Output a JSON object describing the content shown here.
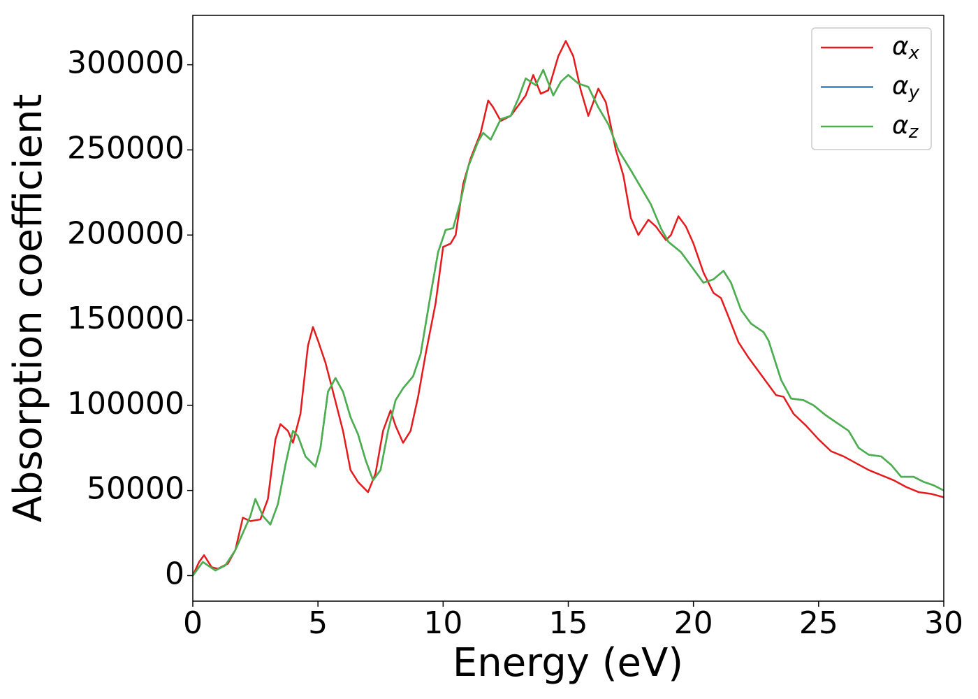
{
  "chart_data": {
    "type": "line",
    "xlabel": "Energy (eV)",
    "ylabel": "Absorption coefficient",
    "xlim": [
      0,
      30
    ],
    "ylim": [
      -15000,
      329000
    ],
    "xticks": [
      0,
      5,
      10,
      15,
      20,
      25,
      30
    ],
    "yticks": [
      0,
      50000,
      100000,
      150000,
      200000,
      250000,
      300000
    ],
    "legend": "upper right",
    "series": [
      {
        "name": "αx",
        "color": "#e41a1c",
        "x": [
          0,
          0.25,
          0.45,
          0.75,
          1.0,
          1.4,
          1.7,
          2.0,
          2.3,
          2.7,
          3.0,
          3.3,
          3.5,
          3.8,
          4.0,
          4.3,
          4.6,
          4.8,
          5.0,
          5.3,
          5.6,
          6.0,
          6.3,
          6.6,
          7.0,
          7.3,
          7.6,
          7.9,
          8.1,
          8.4,
          8.7,
          9.0,
          9.3,
          9.7,
          10.0,
          10.3,
          10.5,
          10.8,
          11.1,
          11.5,
          11.8,
          12.0,
          12.3,
          12.7,
          13.0,
          13.3,
          13.6,
          13.9,
          14.2,
          14.6,
          14.9,
          15.2,
          15.5,
          15.8,
          16.2,
          16.5,
          16.9,
          17.2,
          17.5,
          17.8,
          18.2,
          18.5,
          18.9,
          19.1,
          19.4,
          19.7,
          20.0,
          20.4,
          20.8,
          21.1,
          21.4,
          21.8,
          22.2,
          22.6,
          23.0,
          23.3,
          23.6,
          24.0,
          24.5,
          25.0,
          25.5,
          26.0,
          26.5,
          27.0,
          27.5,
          28.0,
          28.5,
          29.0,
          29.5,
          30.0
        ],
        "values": [
          0,
          8000,
          12000,
          5000,
          4000,
          7000,
          15000,
          34000,
          32000,
          33000,
          45000,
          80000,
          89000,
          85000,
          78000,
          95000,
          135000,
          146000,
          138000,
          125000,
          108000,
          85000,
          62000,
          55000,
          49000,
          60000,
          85000,
          97000,
          88000,
          78000,
          85000,
          105000,
          130000,
          160000,
          193000,
          195000,
          200000,
          230000,
          245000,
          260000,
          279000,
          275000,
          267000,
          270000,
          276000,
          282000,
          294000,
          283000,
          285000,
          305000,
          314000,
          305000,
          285000,
          270000,
          286000,
          278000,
          250000,
          235000,
          210000,
          200000,
          209000,
          205000,
          197000,
          200000,
          211000,
          205000,
          195000,
          178000,
          166000,
          163000,
          152000,
          137000,
          128000,
          120000,
          112000,
          106000,
          105000,
          95000,
          88000,
          80000,
          73000,
          70000,
          66000,
          62000,
          59000,
          56000,
          52000,
          49000,
          48000,
          46000
        ]
      },
      {
        "name": "αy",
        "color": "#377eb8",
        "x": [
          0,
          0.4,
          0.9,
          1.3,
          1.7,
          2.0,
          2.3,
          2.5,
          2.8,
          3.1,
          3.4,
          3.7,
          4.0,
          4.2,
          4.5,
          4.9,
          5.1,
          5.4,
          5.7,
          6.0,
          6.3,
          6.6,
          6.9,
          7.2,
          7.5,
          7.8,
          8.1,
          8.4,
          8.8,
          9.1,
          9.5,
          9.8,
          10.1,
          10.4,
          10.7,
          11.0,
          11.4,
          11.6,
          11.9,
          12.3,
          12.7,
          13.0,
          13.3,
          13.7,
          14.0,
          14.4,
          14.7,
          15.0,
          15.4,
          15.8,
          16.2,
          16.6,
          17.0,
          17.5,
          17.9,
          18.3,
          18.7,
          19.0,
          19.5,
          20.0,
          20.4,
          20.8,
          21.2,
          21.5,
          21.9,
          22.3,
          22.8,
          23.0,
          23.5,
          23.9,
          24.4,
          24.8,
          25.3,
          25.7,
          26.2,
          26.6,
          27.0,
          27.5,
          27.9,
          28.3,
          28.8,
          29.2,
          29.6,
          30.0
        ],
        "values": [
          0,
          8000,
          3000,
          6000,
          15000,
          25000,
          35000,
          45000,
          35000,
          30000,
          42000,
          65000,
          85000,
          82000,
          70000,
          64000,
          75000,
          108000,
          116000,
          108000,
          93000,
          83000,
          68000,
          56000,
          62000,
          85000,
          103000,
          110000,
          117000,
          130000,
          165000,
          190000,
          203000,
          204000,
          220000,
          240000,
          255000,
          260000,
          256000,
          268000,
          270000,
          280000,
          292000,
          288000,
          297000,
          282000,
          290000,
          294000,
          289000,
          287000,
          275000,
          265000,
          250000,
          238000,
          228000,
          218000,
          204000,
          196000,
          190000,
          180000,
          172000,
          174000,
          179000,
          172000,
          156000,
          148000,
          143000,
          138000,
          115000,
          104000,
          103000,
          100000,
          94000,
          90000,
          85000,
          75000,
          71000,
          70000,
          65000,
          58000,
          58000,
          55000,
          53000,
          50000
        ]
      },
      {
        "name": "αz",
        "color": "#4daf4a",
        "x": [
          0,
          0.4,
          0.9,
          1.3,
          1.7,
          2.0,
          2.3,
          2.5,
          2.8,
          3.1,
          3.4,
          3.7,
          4.0,
          4.2,
          4.5,
          4.9,
          5.1,
          5.4,
          5.7,
          6.0,
          6.3,
          6.6,
          6.9,
          7.2,
          7.5,
          7.8,
          8.1,
          8.4,
          8.8,
          9.1,
          9.5,
          9.8,
          10.1,
          10.4,
          10.7,
          11.0,
          11.4,
          11.6,
          11.9,
          12.3,
          12.7,
          13.0,
          13.3,
          13.7,
          14.0,
          14.4,
          14.7,
          15.0,
          15.4,
          15.8,
          16.2,
          16.6,
          17.0,
          17.5,
          17.9,
          18.3,
          18.7,
          19.0,
          19.5,
          20.0,
          20.4,
          20.8,
          21.2,
          21.5,
          21.9,
          22.3,
          22.8,
          23.0,
          23.5,
          23.9,
          24.4,
          24.8,
          25.3,
          25.7,
          26.2,
          26.6,
          27.0,
          27.5,
          27.9,
          28.3,
          28.8,
          29.2,
          29.6,
          30.0
        ],
        "values": [
          0,
          8000,
          3000,
          6000,
          15000,
          25000,
          35000,
          45000,
          35000,
          30000,
          42000,
          65000,
          85000,
          82000,
          70000,
          64000,
          75000,
          108000,
          116000,
          108000,
          93000,
          83000,
          68000,
          56000,
          62000,
          85000,
          103000,
          110000,
          117000,
          130000,
          165000,
          190000,
          203000,
          204000,
          220000,
          240000,
          255000,
          260000,
          256000,
          268000,
          270000,
          280000,
          292000,
          288000,
          297000,
          282000,
          290000,
          294000,
          289000,
          287000,
          275000,
          265000,
          250000,
          238000,
          228000,
          218000,
          204000,
          196000,
          190000,
          180000,
          172000,
          174000,
          179000,
          172000,
          156000,
          148000,
          143000,
          138000,
          115000,
          104000,
          103000,
          100000,
          94000,
          90000,
          85000,
          75000,
          71000,
          70000,
          65000,
          58000,
          58000,
          55000,
          53000,
          50000
        ]
      }
    ]
  }
}
